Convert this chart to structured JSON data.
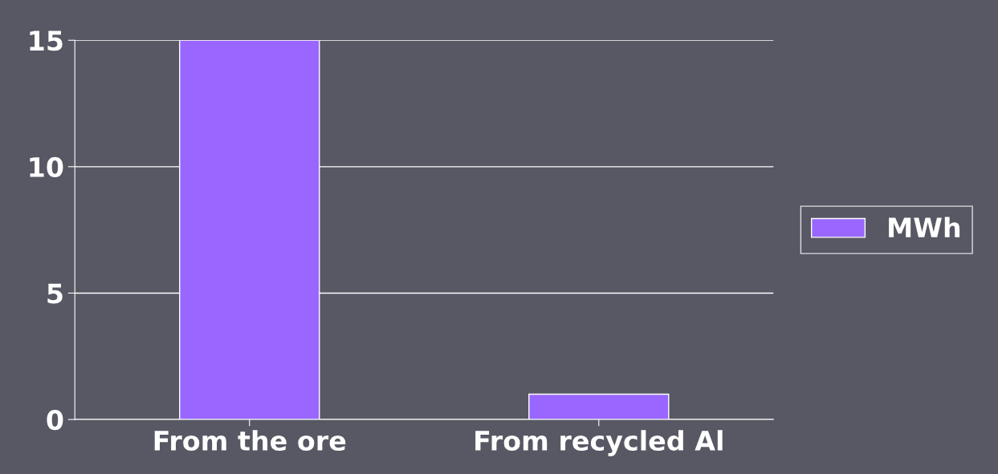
{
  "chart_data": {
    "type": "bar",
    "categories": [
      "From the ore",
      "From recycled Al"
    ],
    "series": [
      {
        "name": "MWh",
        "color": "#9966ff",
        "values": [
          15,
          1
        ]
      }
    ],
    "ylim": [
      0,
      15
    ],
    "yticks": [
      0,
      5,
      10,
      15
    ],
    "grid": "y",
    "legend": "right"
  }
}
